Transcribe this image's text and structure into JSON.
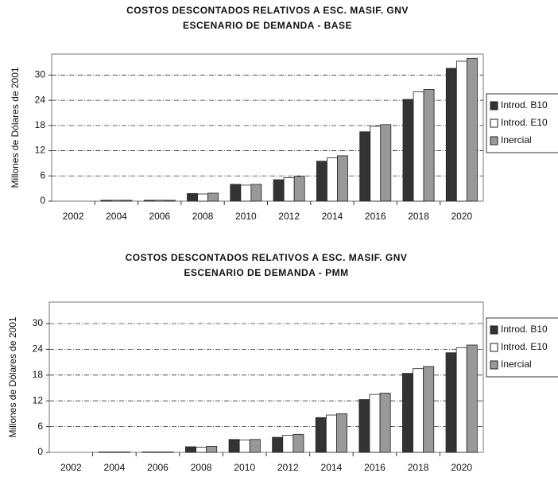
{
  "chart_data": [
    {
      "type": "bar",
      "title": "COSTOS DESCONTADOS RELATIVOS A ESC. MASIF. GNV",
      "subtitle": "ESCENARIO DE DEMANDA - BASE",
      "y_label": "Millones de Dólares de 2001",
      "categories": [
        "2002",
        "2004",
        "2006",
        "2008",
        "2010",
        "2012",
        "2014",
        "2016",
        "2018",
        "2020"
      ],
      "series": [
        {
          "name": "Introd. B10",
          "color": "#333333",
          "values": [
            0,
            0.2,
            0.2,
            1.8,
            4.0,
            5.1,
            9.5,
            16.5,
            24.2,
            31.6
          ]
        },
        {
          "name": "Introd. E10",
          "color": "#ffffff",
          "values": [
            0,
            0.2,
            0.2,
            1.7,
            3.8,
            5.6,
            10.3,
            17.8,
            26.0,
            33.3
          ]
        },
        {
          "name": "Inercial",
          "color": "#999999",
          "values": [
            0,
            0.2,
            0.2,
            1.9,
            4.0,
            5.9,
            10.8,
            18.2,
            26.6,
            34.0
          ]
        }
      ],
      "ylim": [
        0,
        35
      ],
      "yticks": [
        0,
        6,
        12,
        18,
        24,
        30
      ],
      "grid": true,
      "legend": "right"
    },
    {
      "type": "bar",
      "title": "COSTOS DESCONTADOS RELATIVOS A ESC. MASIF. GNV",
      "subtitle": "ESCENARIO DE DEMANDA - PMM",
      "y_label": "Millones de Dólares de 2001",
      "categories": [
        "2002",
        "2004",
        "2006",
        "2008",
        "2010",
        "2012",
        "2014",
        "2016",
        "2018",
        "2020"
      ],
      "series": [
        {
          "name": "Introd. B10",
          "color": "#333333",
          "values": [
            0,
            0.1,
            0.1,
            1.3,
            3.0,
            3.5,
            8.1,
            12.3,
            18.4,
            23.2
          ]
        },
        {
          "name": "Introd. E10",
          "color": "#ffffff",
          "values": [
            0,
            0.1,
            0.1,
            1.2,
            2.9,
            4.0,
            8.7,
            13.5,
            19.5,
            24.4
          ]
        },
        {
          "name": "Inercial",
          "color": "#999999",
          "values": [
            0,
            0.1,
            0.1,
            1.4,
            3.0,
            4.2,
            9.0,
            13.8,
            20.0,
            25.0
          ]
        }
      ],
      "ylim": [
        0,
        35
      ],
      "yticks": [
        0,
        6,
        12,
        18,
        24,
        30
      ],
      "grid": true,
      "legend": "right"
    }
  ]
}
